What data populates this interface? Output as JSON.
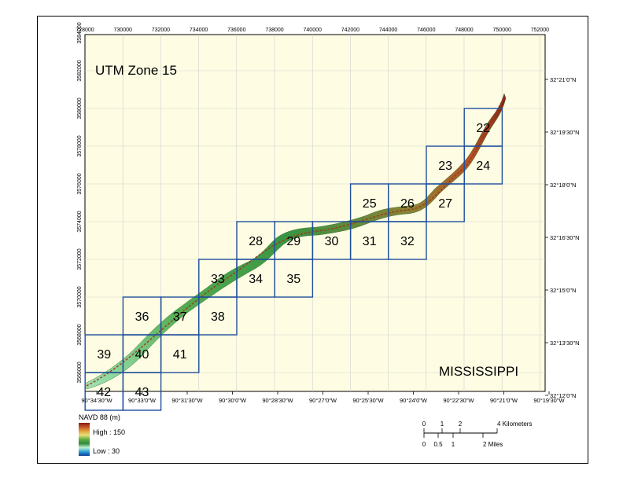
{
  "map": {
    "zone_label": "UTM Zone 15",
    "state_label": "MISSISSIPPI",
    "background_color": "#fefde3",
    "grid_line_color": "#cfcfcf",
    "tile_border_color": "#1f4e9c",
    "easting_ticks": [
      "728000",
      "730000",
      "732000",
      "734000",
      "736000",
      "738000",
      "740000",
      "742000",
      "744000",
      "746000",
      "748000",
      "750000",
      "752000"
    ],
    "northing_ticks": [
      "3584000",
      "3582000",
      "3580000",
      "3578000",
      "3576000",
      "3574000",
      "3572000",
      "3570000",
      "3568000",
      "3566000"
    ],
    "longitude_ticks": [
      "90°34'30\"W",
      "90°33'0\"W",
      "90°31'30\"W",
      "90°30'0\"W",
      "90°28'30\"W",
      "90°27'0\"W",
      "90°25'30\"W",
      "90°24'0\"W",
      "90°22'30\"W",
      "90°21'0\"W",
      "90°19'30\"W"
    ],
    "latitude_ticks": [
      "32°21'0\"N",
      "32°19'30\"N",
      "32°18'0\"N",
      "32°16'30\"N",
      "32°15'0\"N",
      "32°13'30\"N",
      "32°12'0\"N"
    ],
    "tiles": [
      "22",
      "23",
      "24",
      "25",
      "26",
      "27",
      "28",
      "29",
      "30",
      "31",
      "32",
      "33",
      "34",
      "35",
      "36",
      "37",
      "38",
      "39",
      "40",
      "41",
      "42",
      "43"
    ]
  },
  "legend": {
    "title": "NAVD 88 (m)",
    "high_label": "High : 150",
    "low_label": "Low : 30",
    "ramp_colors": [
      "#8b1a10",
      "#c0552a",
      "#e3a23c",
      "#e6e07a",
      "#5fae3f",
      "#2e8b3a",
      "#bff0d0",
      "#2a9fd6",
      "#0a3c9a"
    ]
  },
  "scalebar": {
    "km_ticks": [
      "0",
      "1",
      "2",
      "4 Kilometers"
    ],
    "mile_ticks": [
      "0",
      "0.5",
      "1",
      "2 Miles"
    ]
  }
}
